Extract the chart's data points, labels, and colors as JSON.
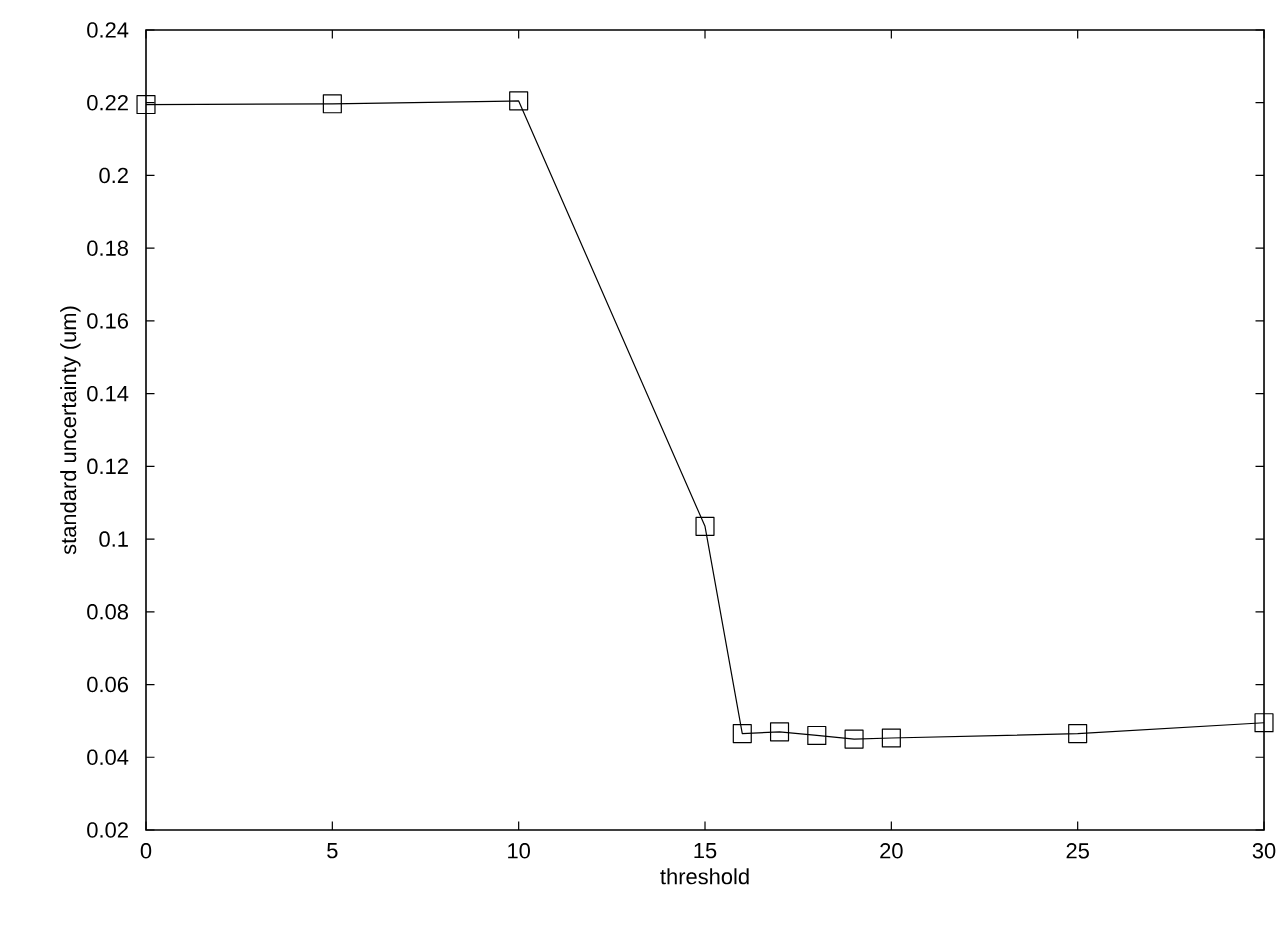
{
  "chart_data": {
    "type": "line",
    "xlabel": "threshold",
    "ylabel": "standard uncertainty (um)",
    "x": [
      0,
      5,
      10,
      15,
      16,
      17,
      18,
      19,
      20,
      25,
      30
    ],
    "series": [
      {
        "color": "#000000",
        "values": [
          0.2195,
          0.2197,
          0.2205,
          0.1035,
          0.0465,
          0.047,
          0.046,
          0.045,
          0.0453,
          0.0465,
          0.0495
        ]
      }
    ],
    "xlim": [
      0,
      30
    ],
    "ylim": [
      0.02,
      0.24
    ],
    "xticks": [
      0,
      5,
      10,
      15,
      20,
      25,
      30
    ],
    "yticks": [
      0.02,
      0.04,
      0.06,
      0.08,
      0.1,
      0.12,
      0.14,
      0.16,
      0.18,
      0.2,
      0.22,
      0.24
    ],
    "marker": "square",
    "line_style": "solid"
  }
}
